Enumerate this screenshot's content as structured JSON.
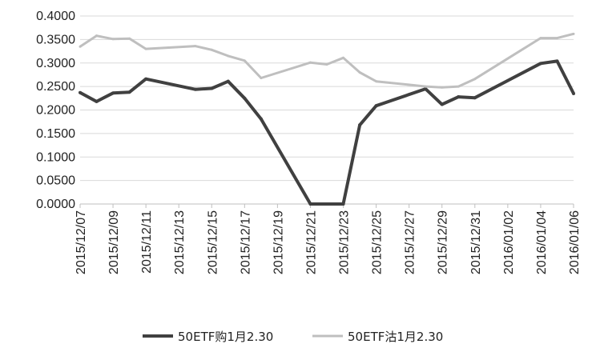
{
  "chart_data": {
    "type": "line",
    "title": "",
    "xlabel": "",
    "ylabel": "",
    "ylim": [
      0,
      0.4
    ],
    "y_ticks": [
      "0.0000",
      "0.0500",
      "0.1000",
      "0.1500",
      "0.2000",
      "0.2500",
      "0.3000",
      "0.3500",
      "0.4000"
    ],
    "x_tick_labels": [
      "2015/12/07",
      "2015/12/09",
      "2015/12/11",
      "2015/12/13",
      "2015/12/15",
      "2015/12/17",
      "2015/12/19",
      "2015/12/21",
      "2015/12/23",
      "2015/12/25",
      "2015/12/27",
      "2015/12/29",
      "2015/12/31",
      "2016/01/02",
      "2016/01/04",
      "2016/01/06"
    ],
    "x": [
      "2015/12/07",
      "2015/12/08",
      "2015/12/09",
      "2015/12/10",
      "2015/12/11",
      "2015/12/14",
      "2015/12/15",
      "2015/12/16",
      "2015/12/17",
      "2015/12/18",
      "2015/12/21",
      "2015/12/22",
      "2015/12/23",
      "2015/12/24",
      "2015/12/25",
      "2015/12/28",
      "2015/12/29",
      "2015/12/30",
      "2015/12/31",
      "2016/01/04",
      "2016/01/05",
      "2016/01/06"
    ],
    "gridlines": true,
    "legend_position": "bottom",
    "series": [
      {
        "name": "50ETF购1月2.30",
        "color": "#404040",
        "width": 4,
        "values": [
          0.237,
          0.218,
          0.236,
          0.238,
          0.266,
          0.244,
          0.246,
          0.261,
          0.225,
          0.181,
          0.0,
          0.0,
          0.0,
          0.168,
          0.209,
          0.245,
          0.212,
          0.228,
          0.226,
          0.299,
          0.304,
          0.235
        ]
      },
      {
        "name": "50ETF沽1月2.30",
        "color": "#bfbfbf",
        "width": 3,
        "values": [
          0.335,
          0.358,
          0.351,
          0.352,
          0.33,
          0.336,
          0.328,
          0.315,
          0.305,
          0.268,
          0.301,
          0.297,
          0.311,
          0.28,
          0.261,
          0.25,
          0.248,
          0.25,
          0.266,
          0.353,
          0.353,
          0.362
        ]
      }
    ]
  }
}
